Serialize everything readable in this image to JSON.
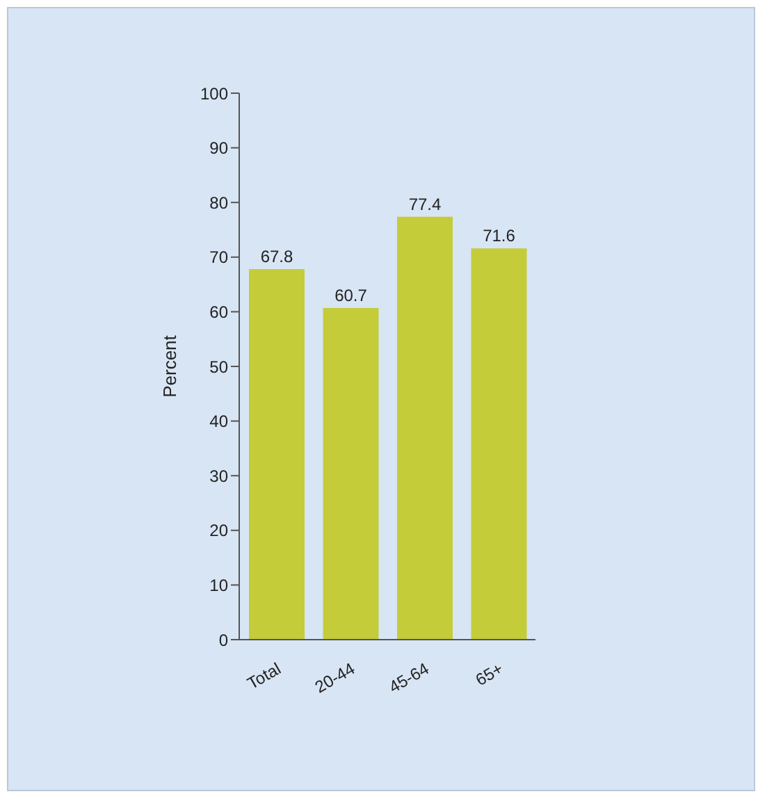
{
  "chart_data": {
    "type": "bar",
    "ylabel": "Percent",
    "categories": [
      "Total",
      "20-44",
      "45-64",
      "65+"
    ],
    "values": [
      67.8,
      60.7,
      77.4,
      71.6
    ],
    "color": "#c4cc3a",
    "ylim": [
      0,
      100
    ],
    "yticks": [
      0,
      10,
      20,
      30,
      40,
      50,
      60,
      70,
      80,
      90,
      100
    ],
    "data_labels": true,
    "grid": false
  }
}
